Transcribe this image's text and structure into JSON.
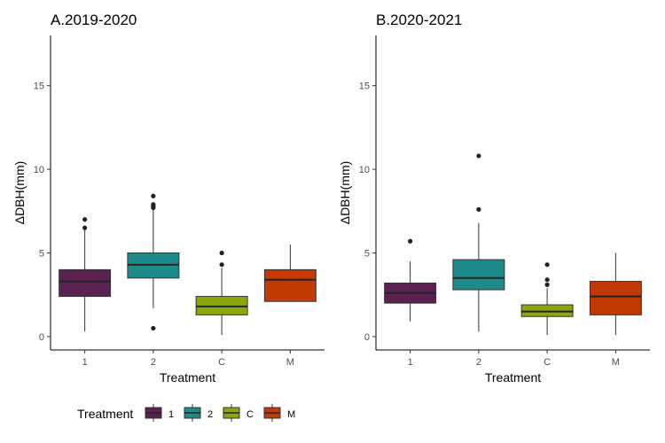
{
  "chart_data": [
    {
      "type": "box",
      "title": "A.2019-2020",
      "xlabel": "Treatment",
      "ylabel": "ΔDBH(mm)",
      "ylim": [
        -0.8,
        18
      ],
      "yticks": [
        0,
        5,
        10,
        15
      ],
      "categories": [
        "1",
        "2",
        "C",
        "M"
      ],
      "boxes": [
        {
          "category": "1",
          "min": 0.3,
          "q1": 2.4,
          "median": 3.3,
          "q3": 4.0,
          "max": 6.4,
          "outliers": [
            6.5,
            7.0
          ],
          "color": "#5a2151"
        },
        {
          "category": "2",
          "min": 1.7,
          "q1": 3.5,
          "median": 4.3,
          "q3": 5.0,
          "max": 7.6,
          "outliers": [
            0.5,
            7.7,
            7.8,
            7.9,
            8.4
          ],
          "color": "#1f8a8a"
        },
        {
          "category": "C",
          "min": 0.1,
          "q1": 1.3,
          "median": 1.8,
          "q3": 2.4,
          "max": 4.1,
          "outliers": [
            4.3,
            5.0
          ],
          "color": "#8aa80c"
        },
        {
          "category": "M",
          "min": 2.1,
          "q1": 2.1,
          "median": 3.4,
          "q3": 4.0,
          "max": 5.5,
          "outliers": [],
          "color": "#c23a05"
        }
      ]
    },
    {
      "type": "box",
      "title": "B.2020-2021",
      "xlabel": "Treatment",
      "ylabel": "ΔDBH(mm)",
      "ylim": [
        -0.8,
        18
      ],
      "yticks": [
        0,
        5,
        10,
        15
      ],
      "categories": [
        "1",
        "2",
        "C",
        "M"
      ],
      "boxes": [
        {
          "category": "1",
          "min": 0.9,
          "q1": 2.0,
          "median": 2.6,
          "q3": 3.2,
          "max": 4.5,
          "outliers": [
            5.7
          ],
          "color": "#5a2151"
        },
        {
          "category": "2",
          "min": 0.3,
          "q1": 2.8,
          "median": 3.5,
          "q3": 4.6,
          "max": 6.8,
          "outliers": [
            7.6,
            10.8
          ],
          "color": "#1f8a8a"
        },
        {
          "category": "C",
          "min": 0.1,
          "q1": 1.2,
          "median": 1.5,
          "q3": 1.9,
          "max": 2.9,
          "outliers": [
            3.1,
            3.4,
            4.3
          ],
          "color": "#8aa80c"
        },
        {
          "category": "M",
          "min": 0.1,
          "q1": 1.3,
          "median": 2.4,
          "q3": 3.3,
          "max": 5.0,
          "outliers": [],
          "color": "#c23a05"
        }
      ]
    }
  ],
  "legend": {
    "title": "Treatment",
    "position": "bottom",
    "items": [
      {
        "label": "1",
        "color": "#5a2151"
      },
      {
        "label": "2",
        "color": "#1f8a8a"
      },
      {
        "label": "C",
        "color": "#8aa80c"
      },
      {
        "label": "M",
        "color": "#c23a05"
      }
    ]
  }
}
